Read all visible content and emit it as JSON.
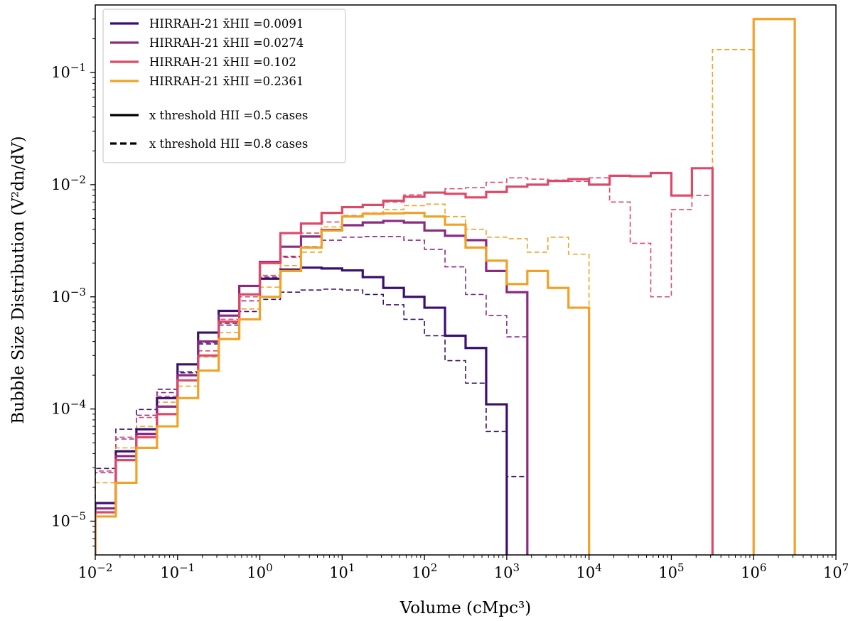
{
  "chart_data": {
    "type": "step",
    "xscale": "log",
    "yscale": "log",
    "xlabel": "Volume (cMpc³)",
    "ylabel": "Bubble Size Distribution (V²dn/dV)",
    "xlim": [
      0.01,
      10000000
    ],
    "ylim": [
      5e-06,
      0.4
    ],
    "x_ticks": [
      {
        "value": 0.01,
        "base": "10",
        "exp": "−2"
      },
      {
        "value": 0.1,
        "base": "10",
        "exp": "−1"
      },
      {
        "value": 1,
        "base": "10",
        "exp": "0"
      },
      {
        "value": 10,
        "base": "10",
        "exp": "1"
      },
      {
        "value": 100,
        "base": "10",
        "exp": "2"
      },
      {
        "value": 1000,
        "base": "10",
        "exp": "3"
      },
      {
        "value": 10000,
        "base": "10",
        "exp": "4"
      },
      {
        "value": 100000,
        "base": "10",
        "exp": "5"
      },
      {
        "value": 1000000,
        "base": "10",
        "exp": "6"
      },
      {
        "value": 10000000,
        "base": "10",
        "exp": "7"
      }
    ],
    "y_ticks": [
      {
        "value": 1e-05,
        "base": "10",
        "exp": "−5"
      },
      {
        "value": 0.0001,
        "base": "10",
        "exp": "−4"
      },
      {
        "value": 0.001,
        "base": "10",
        "exp": "−3"
      },
      {
        "value": 0.01,
        "base": "10",
        "exp": "−2"
      },
      {
        "value": 0.1,
        "base": "10",
        "exp": "−1"
      }
    ],
    "bin_edges_log10": [
      -2,
      -1.75,
      -1.5,
      -1.25,
      -1,
      -0.75,
      -0.5,
      -0.25,
      0,
      0.25,
      0.5,
      0.75,
      1,
      1.25,
      1.5,
      1.75,
      2,
      2.25,
      2.5,
      2.75,
      3,
      3.25,
      3.5,
      3.75,
      4,
      4.25,
      4.5,
      4.75,
      5,
      5.25,
      5.5,
      5.75,
      6,
      6.25,
      6.5,
      6.75,
      7
    ],
    "series": [
      {
        "name": "HIRRAH-21 x̄HII =0.0091, threshold 0.5",
        "color": "#3b0f70",
        "style": "solid",
        "values": [
          1.45e-05,
          4.2e-05,
          6.6e-05,
          0.000125,
          0.00025,
          0.00048,
          0.00075,
          0.00105,
          0.00145,
          0.00175,
          0.00182,
          0.00179,
          0.00172,
          0.0015,
          0.0012,
          0.001,
          0.0008,
          0.00045,
          0.00035,
          0.00011,
          null,
          null,
          null,
          null,
          null,
          null,
          null,
          null,
          null,
          null,
          null,
          null,
          null,
          null,
          null,
          null
        ]
      },
      {
        "name": "HIRRAH-21 x̄HII =0.0091, threshold 0.8",
        "color": "#3b0f70",
        "style": "dashed",
        "values": [
          2.95e-05,
          6.6e-05,
          9.9e-05,
          0.00015,
          0.00021,
          0.00038,
          0.00056,
          0.00074,
          0.00095,
          0.0011,
          0.00115,
          0.00117,
          0.00115,
          0.00105,
          0.00085,
          0.00063,
          0.00045,
          0.00027,
          0.00017,
          6.3e-05,
          2.5e-05,
          null,
          null,
          null,
          null,
          null,
          null,
          null,
          null,
          null,
          null,
          null,
          null,
          null,
          null,
          null
        ]
      },
      {
        "name": "HIRRAH-21 x̄HII =0.0274, threshold 0.5",
        "color": "#8c2981",
        "style": "solid",
        "values": [
          1.3e-05,
          3.8e-05,
          6e-05,
          0.000105,
          0.0002,
          0.0004,
          0.00068,
          0.00125,
          0.00205,
          0.0028,
          0.00345,
          0.00395,
          0.00435,
          0.0046,
          0.00475,
          0.0046,
          0.0039,
          0.0035,
          0.0032,
          0.0017,
          0.0011,
          null,
          null,
          null,
          null,
          null,
          null,
          null,
          null,
          null,
          null,
          null,
          null,
          null,
          null,
          null
        ]
      },
      {
        "name": "HIRRAH-21 x̄HII =0.0274, threshold 0.8",
        "color": "#8c2981",
        "style": "dashed",
        "values": [
          2.7e-05,
          5.4e-05,
          8.8e-05,
          0.00014,
          0.000215,
          0.00039,
          0.00058,
          0.00092,
          0.0015,
          0.0023,
          0.0028,
          0.0032,
          0.0034,
          0.00345,
          0.00345,
          0.0032,
          0.00265,
          0.00185,
          0.00105,
          0.00068,
          0.00044,
          null,
          null,
          null,
          null,
          null,
          null,
          null,
          null,
          null,
          null,
          null,
          null,
          null,
          null,
          null
        ]
      },
      {
        "name": "HIRRAH-21 x̄HII =0.102, threshold 0.5",
        "color": "#de4968",
        "style": "solid",
        "values": [
          1.2e-05,
          3.5e-05,
          5.6e-05,
          9e-05,
          0.00018,
          0.0003,
          0.0006,
          0.00105,
          0.002,
          0.0037,
          0.0045,
          0.0056,
          0.0063,
          0.0066,
          0.0072,
          0.0078,
          0.0085,
          0.0083,
          0.0077,
          0.0086,
          0.0096,
          0.01,
          0.0108,
          0.0112,
          0.01,
          0.012,
          0.0119,
          0.0127,
          0.008,
          0.014,
          null,
          null,
          null,
          null,
          null,
          null
        ]
      },
      {
        "name": "HIRRAH-21 x̄HII =0.102, threshold 0.8",
        "color": "#de4968",
        "style": "dashed",
        "values": [
          2.8e-05,
          5.6e-05,
          8.4e-05,
          0.00013,
          0.00018,
          0.00033,
          0.00063,
          0.001,
          0.00155,
          0.00225,
          0.0037,
          0.00465,
          0.0053,
          0.0056,
          0.007,
          0.0081,
          0.0086,
          0.0092,
          0.0094,
          0.0105,
          0.0115,
          0.0112,
          0.011,
          0.0107,
          0.0115,
          0.007,
          0.003,
          0.001,
          0.006,
          0.008,
          null,
          null,
          null,
          null,
          null,
          null
        ]
      },
      {
        "name": "HIRRAH-21 x̄HII =0.2361, threshold 0.5",
        "color": "#f1a226",
        "style": "solid",
        "values": [
          1.1e-05,
          2.2e-05,
          4.5e-05,
          7e-05,
          0.000125,
          0.00022,
          0.00042,
          0.00063,
          0.001,
          0.0017,
          0.00275,
          0.0039,
          0.0052,
          0.0055,
          0.00555,
          0.0056,
          0.0052,
          0.0044,
          0.00275,
          0.0021,
          0.0013,
          0.0017,
          0.0012,
          0.0008,
          null,
          null,
          null,
          null,
          null,
          null,
          null,
          null,
          0.3,
          0.3,
          null,
          null
        ]
      },
      {
        "name": "HIRRAH-21 x̄HII =0.2361, threshold 0.8",
        "color": "#f1a226",
        "style": "dashed",
        "values": [
          2.2e-05,
          4.5e-05,
          7e-05,
          0.000115,
          0.00016,
          0.00029,
          0.00048,
          0.00078,
          0.00122,
          0.0019,
          0.0025,
          0.0042,
          0.0052,
          0.0056,
          0.006,
          0.0065,
          0.0067,
          0.0052,
          0.004,
          0.0034,
          0.0033,
          0.0025,
          0.0034,
          0.0024,
          null,
          null,
          null,
          null,
          null,
          null,
          0.16,
          0.16,
          null,
          null,
          null,
          null
        ]
      }
    ],
    "legend": {
      "position": "upper-left",
      "entries": [
        {
          "type": "line",
          "color": "#3b0f70",
          "style": "solid",
          "label": "HIRRAH-21 x̄HII =0.0091"
        },
        {
          "type": "line",
          "color": "#8c2981",
          "style": "solid",
          "label": "HIRRAH-21 x̄HII =0.0274"
        },
        {
          "type": "line",
          "color": "#de4968",
          "style": "solid",
          "label": "HIRRAH-21 x̄HII =0.102"
        },
        {
          "type": "line",
          "color": "#f1a226",
          "style": "solid",
          "label": "HIRRAH-21 x̄HII =0.2361"
        },
        {
          "type": "line",
          "color": "#000000",
          "style": "solid",
          "label": "x threshold HII =0.5 cases"
        },
        {
          "type": "line",
          "color": "#000000",
          "style": "dashed",
          "label": "x threshold HII =0.8 cases"
        }
      ]
    }
  }
}
